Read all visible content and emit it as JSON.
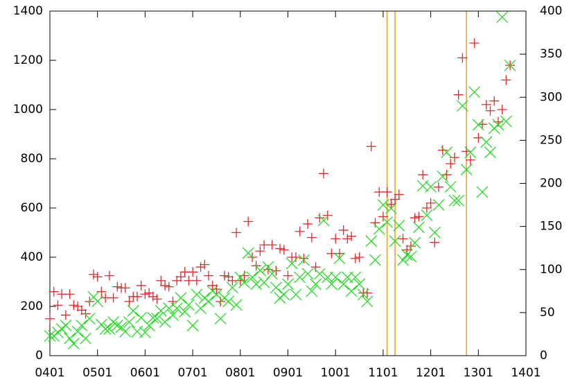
{
  "chart_data": {
    "type": "scatter",
    "x": [
      0,
      1,
      2,
      3,
      4,
      5,
      6,
      7,
      8,
      9,
      10,
      11,
      12,
      13,
      14,
      15,
      16,
      17,
      18,
      19,
      20,
      21,
      22,
      23,
      24,
      25,
      26,
      27,
      28,
      29,
      30,
      31,
      32,
      33,
      34,
      35,
      36,
      37,
      38,
      39,
      40,
      41,
      42,
      43,
      44,
      45,
      46,
      47,
      48,
      49,
      50,
      51,
      52,
      53,
      54,
      55,
      56,
      57,
      58,
      59,
      60,
      61,
      62,
      63,
      64,
      65,
      66,
      67,
      68,
      69,
      70,
      71,
      72,
      73,
      74,
      75,
      76,
      77,
      78,
      79,
      80,
      81,
      82,
      83,
      84,
      85,
      86,
      87,
      88,
      89,
      90,
      91,
      92,
      93,
      94,
      95,
      96,
      97,
      98,
      99,
      100,
      101,
      102,
      103,
      104,
      105,
      106,
      107,
      108,
      109,
      110,
      111,
      112,
      113,
      114,
      115,
      116
    ],
    "series": [
      {
        "color": "#e8262b",
        "marker": "plus",
        "axis": "y",
        "values": [
          150,
          260,
          205,
          250,
          165,
          250,
          205,
          200,
          185,
          170,
          220,
          330,
          320,
          260,
          235,
          325,
          235,
          280,
          275,
          275,
          220,
          240,
          240,
          285,
          250,
          255,
          240,
          230,
          305,
          285,
          280,
          220,
          305,
          320,
          340,
          305,
          340,
          305,
          360,
          370,
          325,
          285,
          270,
          220,
          325,
          320,
          305,
          500,
          305,
          325,
          545,
          400,
          365,
          425,
          450,
          350,
          450,
          345,
          435,
          430,
          325,
          400,
          400,
          505,
          395,
          535,
          480,
          360,
          560,
          740,
          570,
          415,
          475,
          415,
          510,
          475,
          485,
          395,
          400,
          255,
          255,
          850,
          540,
          665,
          565,
          665,
          615,
          635,
          655,
          475,
          430,
          445,
          560,
          565,
          735,
          600,
          620,
          460,
          685,
          835,
          735,
          780,
          805,
          1060,
          1210,
          830,
          795,
          1270,
          885,
          940,
          1020,
          995,
          1035,
          950,
          1000,
          1120,
          1180
        ]
      },
      {
        "color": "#22dd22",
        "marker": "cross",
        "axis": "y2",
        "values": [
          23,
          23,
          27,
          31,
          35,
          20,
          14,
          28,
          35,
          20,
          43,
          68,
          63,
          36,
          31,
          31,
          39,
          35,
          33,
          28,
          39,
          52,
          28,
          44,
          27,
          35,
          44,
          43,
          52,
          39,
          55,
          47,
          55,
          67,
          51,
          59,
          35,
          71,
          55,
          67,
          63,
          75,
          71,
          43,
          67,
          63,
          79,
          59,
          91,
          85,
          119,
          91,
          83,
          99,
          85,
          103,
          95,
          79,
          67,
          71,
          83,
          107,
          71,
          91,
          111,
          95,
          75,
          83,
          95,
          157,
          91,
          83,
          91,
          113,
          83,
          91,
          75,
          91,
          83,
          71,
          63,
          133,
          111,
          147,
          175,
          155,
          171,
          133,
          151,
          111,
          117,
          115,
          131,
          149,
          197,
          163,
          196,
          143,
          175,
          208,
          236,
          196,
          180,
          180,
          290,
          216,
          236,
          306,
          268,
          190,
          248,
          236,
          264,
          268,
          393,
          272,
          337
        ]
      }
    ],
    "xlim": [
      0,
      120
    ],
    "xticks": [
      {
        "value": 0,
        "label": "0401"
      },
      {
        "value": 12,
        "label": "0501"
      },
      {
        "value": 24,
        "label": "0601"
      },
      {
        "value": 36,
        "label": "0701"
      },
      {
        "value": 48,
        "label": "0801"
      },
      {
        "value": 60,
        "label": "0901"
      },
      {
        "value": 72,
        "label": "1001"
      },
      {
        "value": 84,
        "label": "1101"
      },
      {
        "value": 96,
        "label": "1201"
      },
      {
        "value": 108,
        "label": "1301"
      },
      {
        "value": 120,
        "label": "1401"
      }
    ],
    "ylim": [
      0,
      1400
    ],
    "yticks": [
      0,
      200,
      400,
      600,
      800,
      1000,
      1200,
      1400
    ],
    "y2lim": [
      0,
      400
    ],
    "y2ticks": [
      0,
      50,
      100,
      150,
      200,
      250,
      300,
      350,
      400
    ],
    "vlines": [
      85,
      87,
      105
    ],
    "vline_color": "#e8a020"
  }
}
